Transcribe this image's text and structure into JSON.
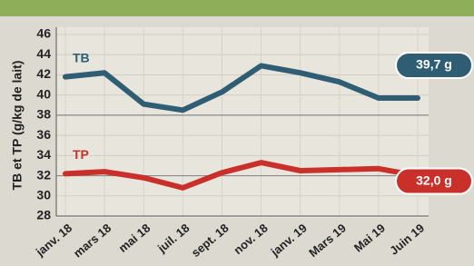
{
  "chart_data": {
    "type": "line",
    "y_label": "TB et TP (g/kg de lait)",
    "categories": [
      "janv. 18",
      "mars 18",
      "mai 18",
      "juil. 18",
      "sept. 18",
      "nov. 18",
      "janv. 19",
      "Mars 19",
      "Mai 19",
      "Juin 19"
    ],
    "series": [
      {
        "name": "TB",
        "color": "#2e5d74",
        "values": [
          41.8,
          42.2,
          39.1,
          38.5,
          40.3,
          42.9,
          42.2,
          41.3,
          39.7,
          39.7
        ],
        "value_labels": [
          null,
          null,
          null,
          null,
          null,
          null,
          null,
          null,
          null,
          "39,7 g"
        ]
      },
      {
        "name": "TP",
        "color": "#c9302a",
        "values": [
          32.2,
          32.4,
          31.8,
          30.8,
          32.3,
          33.3,
          32.5,
          32.6,
          32.7,
          32.0
        ],
        "value_labels": [
          null,
          null,
          null,
          null,
          null,
          null,
          null,
          null,
          null,
          "32,0 g"
        ]
      }
    ],
    "reference_lines": [
      38,
      32
    ],
    "ylim": [
      28,
      46
    ],
    "yticks": [
      28,
      30,
      32,
      34,
      36,
      38,
      40,
      42,
      44,
      46
    ],
    "grid": true
  }
}
